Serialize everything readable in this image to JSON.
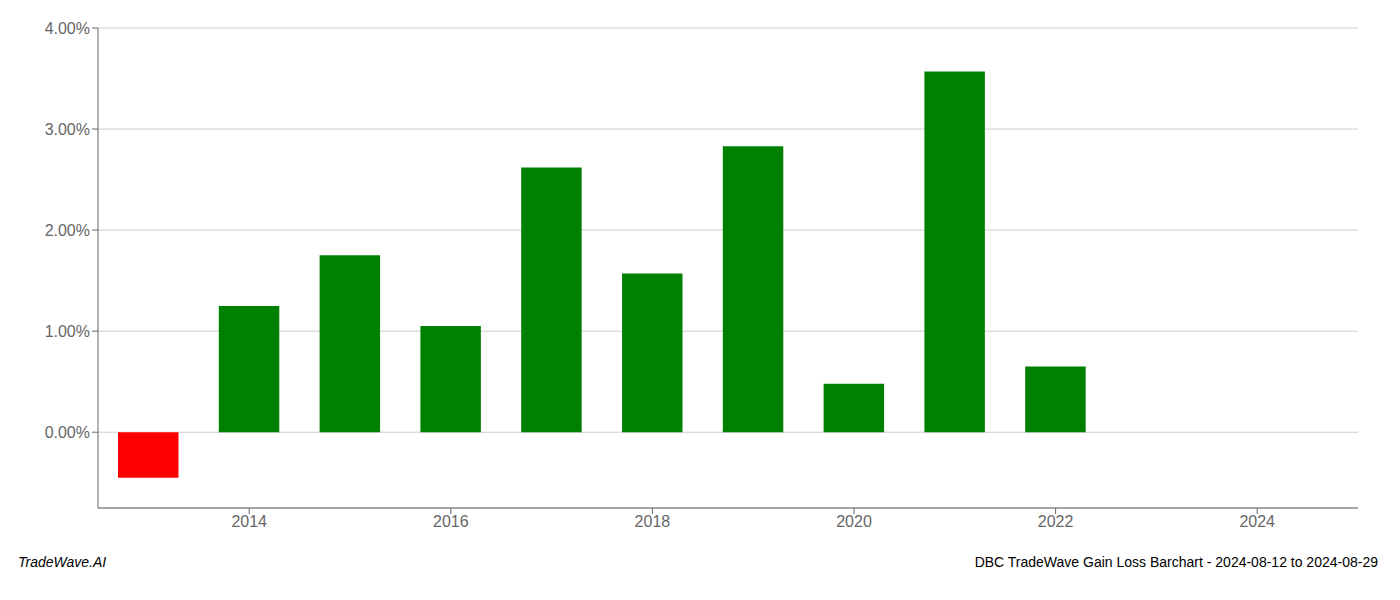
{
  "chart_data": {
    "type": "bar",
    "title": "DBC TradeWave Gain Loss Barchart - 2024-08-12 to 2024-08-29",
    "annotations": [
      "TradeWave.AI"
    ],
    "x": [
      2013,
      2014,
      2015,
      2016,
      2017,
      2018,
      2019,
      2020,
      2021,
      2022,
      2023
    ],
    "values": [
      -0.45,
      1.25,
      1.75,
      1.05,
      2.62,
      1.57,
      2.83,
      0.48,
      3.57,
      0.65,
      0.0
    ],
    "colors": [
      "#ff0000",
      "#008000",
      "#008000",
      "#008000",
      "#008000",
      "#008000",
      "#008000",
      "#008000",
      "#008000",
      "#008000",
      "#008000"
    ],
    "xlim": [
      2012.5,
      2025
    ],
    "xticks": [
      2014,
      2016,
      2018,
      2020,
      2022,
      2024
    ],
    "ylim": [
      -0.75,
      4.0
    ],
    "yticks": [
      {
        "value": 0,
        "label": "0.00%"
      },
      {
        "value": 1,
        "label": "1.00%"
      },
      {
        "value": 2,
        "label": "2.00%"
      },
      {
        "value": 3,
        "label": "3.00%"
      },
      {
        "value": 4,
        "label": "4.00%"
      }
    ],
    "grid": true
  }
}
